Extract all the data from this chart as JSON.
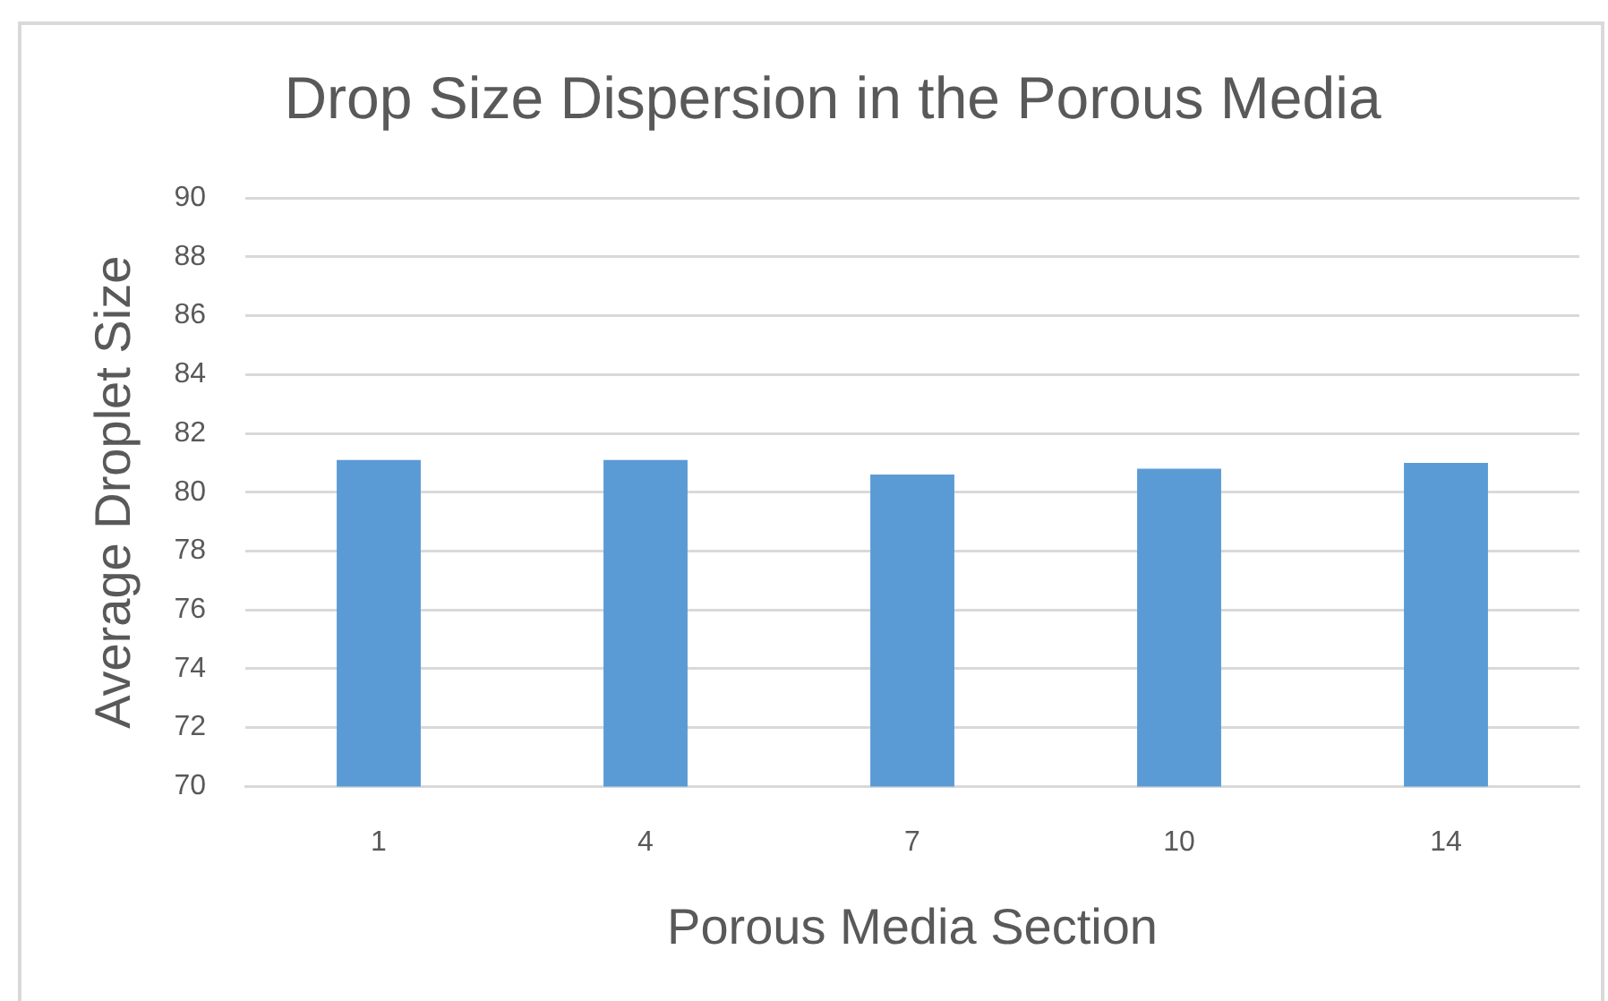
{
  "chart_data": {
    "type": "bar",
    "title": "Drop Size Dispersion in the Porous Media",
    "xlabel": "Porous Media Section",
    "ylabel": "Average Droplet Size",
    "categories": [
      "1",
      "4",
      "7",
      "10",
      "14"
    ],
    "values": [
      81.1,
      81.1,
      80.6,
      80.8,
      81.0
    ],
    "color": "#5b9bd5",
    "ylim": [
      70,
      90
    ],
    "yticks": [
      70,
      72,
      74,
      76,
      78,
      80,
      82,
      84,
      86,
      88,
      90
    ],
    "grid": "y"
  }
}
